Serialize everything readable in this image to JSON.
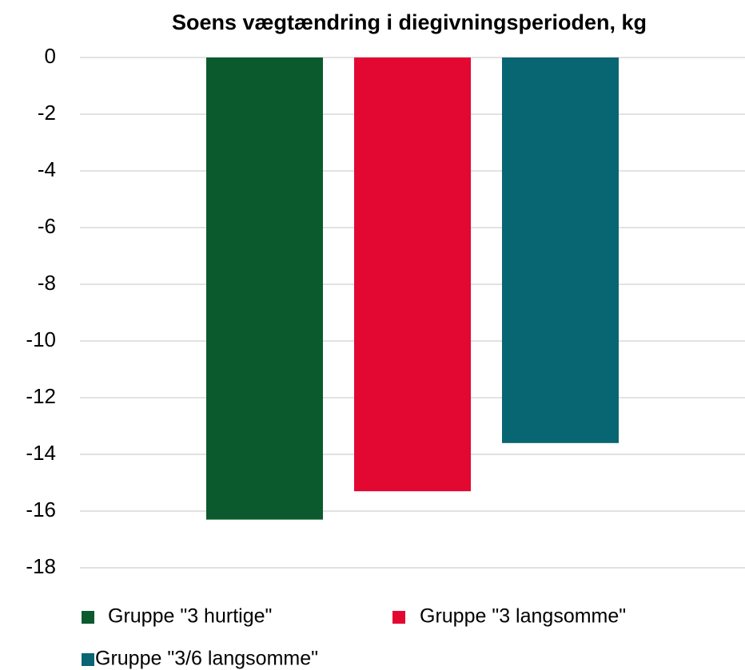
{
  "chart_data": {
    "type": "bar",
    "title": "Soens vægtændring i diegivningsperioden, kg",
    "categories": [
      null
    ],
    "series": [
      {
        "name": "Gruppe \"3 hurtige\"",
        "color": "#0b5a2e",
        "values": [
          -16.3
        ]
      },
      {
        "name": "Gruppe \"3 langsomme\"",
        "color": "#e30832",
        "values": [
          -15.3
        ]
      },
      {
        "name": "Gruppe \"3/6 langsomme\"",
        "color": "#086572",
        "values": [
          -13.6
        ]
      }
    ],
    "ylim": [
      0,
      -18
    ],
    "yticks": [
      0,
      -2,
      -4,
      -6,
      -8,
      -10,
      -12,
      -14,
      -16,
      -18
    ],
    "grid": true,
    "legend": "bottom"
  }
}
